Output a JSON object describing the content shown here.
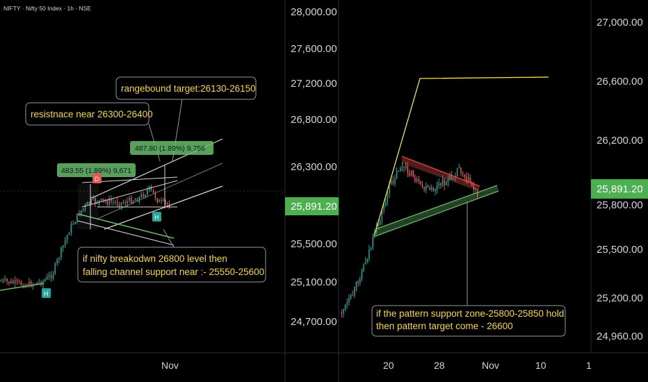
{
  "header": {
    "symbol_line": "NIFTY · Nifty 50 Index · 1h · NSE"
  },
  "left_chart": {
    "price_labels": [
      {
        "text": "28,000.00"
      },
      {
        "text": "27,600.00"
      },
      {
        "text": "27,200.00"
      },
      {
        "text": "26,800.00"
      },
      {
        "text": "26,300.00"
      },
      {
        "text": "25,500.00"
      },
      {
        "text": "25,100.00"
      },
      {
        "text": "24,700.00"
      }
    ],
    "current_price_label": "25,891.20",
    "time_label": "Nov",
    "annotations": {
      "rangebound": "rangebound target:26130-26150",
      "resistance": "resistnace near 26300-26400",
      "breakdown_line1": "if nifty breakodwn 26800 level then",
      "breakdown_line2": "falling channel support near :- 25550-25600"
    },
    "measure_labels": {
      "first": "483.55 (1.89%) 9,671",
      "second": "487.80 (1.89%) 9,756"
    },
    "markers": {
      "h1": "H",
      "h2": "H",
      "d": "D"
    }
  },
  "right_chart": {
    "price_labels": [
      {
        "text": "27,000.00"
      },
      {
        "text": "26,600.00"
      },
      {
        "text": "26,200.00"
      },
      {
        "text": "25,800.00"
      },
      {
        "text": "25,500.00"
      },
      {
        "text": "25,200.00"
      },
      {
        "text": "24,960.00"
      }
    ],
    "current_price_label": "25,891.20",
    "time_labels": [
      "20",
      "28",
      "Nov",
      "10",
      "1"
    ],
    "annotation_line1": "if the pattern support zone-25800-25850 hold",
    "annotation_line2": " then pattern target come - 26600"
  },
  "colors": {
    "background": "#000000",
    "up_candle": "#26a69a",
    "down_candle": "#ef5350",
    "price_tag": "#4caf50",
    "note_text": "#f5d742",
    "target_line": "#f5e642"
  },
  "chart_data": [
    {
      "type": "candlestick",
      "title": "NIFTY · Nifty 50 Index · 1h · NSE",
      "y_axis_labels": [
        28000,
        27600,
        27200,
        26800,
        26300,
        25500,
        25100,
        24700
      ],
      "current_price": 25891.2,
      "x_labels": [
        "Nov"
      ],
      "measurements": [
        {
          "label": "483.55 (1.89%) 9,671",
          "points": 483.55,
          "percent": 1.89,
          "bars": 9671
        },
        {
          "label": "487.80 (1.89%) 9,756",
          "points": 487.8,
          "percent": 1.89,
          "bars": 9756
        }
      ],
      "annotations": [
        "rangebound target:26130-26150",
        "resistnace near 26300-26400",
        "if nifty breakodwn 26800 level then falling channel support near :- 25550-25600"
      ]
    },
    {
      "type": "candlestick",
      "y_axis_labels": [
        27000,
        26600,
        26200,
        25800,
        25500,
        25200,
        24960
      ],
      "current_price": 25891.2,
      "x_labels": [
        "20",
        "28",
        "Nov",
        "10",
        "1"
      ],
      "annotations": [
        "if the pattern support zone-25800-25850 hold then pattern target come - 26600"
      ]
    }
  ]
}
